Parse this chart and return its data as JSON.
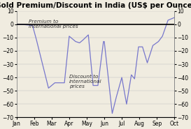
{
  "title": "Gold Premium/Discount in India (US$ per Ounce)",
  "ylim": [
    -70,
    10
  ],
  "yticks": [
    10,
    0,
    -10,
    -20,
    -30,
    -40,
    -50,
    -60,
    -70
  ],
  "x_labels": [
    "Jan",
    "Feb",
    "Mar",
    "Apr",
    "May",
    "Jun",
    "Jul",
    "Aug",
    "Sep",
    "Oct"
  ],
  "line_color": "#7777cc",
  "zero_line_color": "#000000",
  "background_color": "#f0ece0",
  "annotation_premium": "Premium to\ninternational prices",
  "annotation_discount": "Discount to\ninternational\nprices",
  "title_fontsize": 7.5,
  "label_fontsize": 5.5,
  "annot_fontsize": 5.2,
  "x_values": [
    0,
    0.25,
    1.0,
    1.25,
    2.0,
    2.4,
    3.0,
    3.3,
    3.7,
    3.95,
    4.15,
    4.5,
    4.8,
    5.1,
    5.45,
    5.5,
    6.0,
    6.25,
    6.6,
    6.9,
    7.2,
    7.4,
    7.65,
    7.9,
    8.2,
    8.55,
    8.9,
    9.15,
    9.5,
    9.9
  ],
  "y_values": [
    0,
    0,
    -1,
    -12,
    -48,
    -44,
    -44,
    -9,
    -13,
    -14,
    -12,
    -8,
    -46,
    -46,
    -13,
    -13,
    -67,
    -55,
    -40,
    -60,
    -38,
    -41,
    -17,
    -17,
    -29,
    -16,
    -13,
    -9,
    3,
    5
  ]
}
